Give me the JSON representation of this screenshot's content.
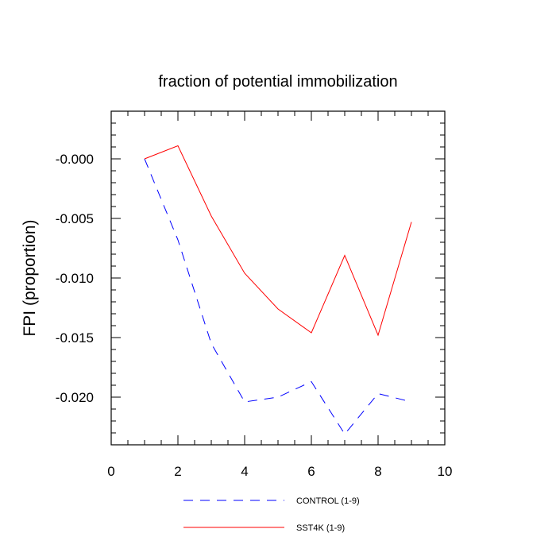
{
  "chart_data": {
    "type": "line",
    "title": "fraction of potential immobilization",
    "xlabel": "",
    "ylabel": "FPI  (proportion)",
    "xlim": [
      0,
      10
    ],
    "ylim": [
      -0.024,
      0.004
    ],
    "x_ticks": [
      0,
      2,
      4,
      6,
      8,
      10
    ],
    "x_tick_labels": [
      "0",
      "2",
      "4",
      "6",
      "8",
      "10"
    ],
    "y_ticks": [
      0.0,
      -0.005,
      -0.01,
      -0.015,
      -0.02
    ],
    "y_tick_labels": [
      "-0.000",
      "-0.005",
      "-0.010",
      "-0.015",
      "-0.020"
    ],
    "grid": false,
    "legend_position": "bottom",
    "series": [
      {
        "name": "CONTROL (1-9)",
        "color": "#0000ff",
        "style": "dashed",
        "x": [
          1,
          2,
          3,
          4,
          5,
          6,
          7,
          8,
          9
        ],
        "values": [
          0.0,
          -0.0068,
          -0.0155,
          -0.0204,
          -0.02,
          -0.0187,
          -0.0231,
          -0.0197,
          -0.0204
        ]
      },
      {
        "name": "SST4K (1-9)",
        "color": "#ff0000",
        "style": "solid",
        "x": [
          1,
          2,
          3,
          4,
          5,
          6,
          7,
          8,
          9
        ],
        "values": [
          0.0,
          0.0011,
          -0.0048,
          -0.0096,
          -0.0126,
          -0.0146,
          -0.0081,
          -0.0148,
          -0.0053
        ]
      }
    ]
  }
}
